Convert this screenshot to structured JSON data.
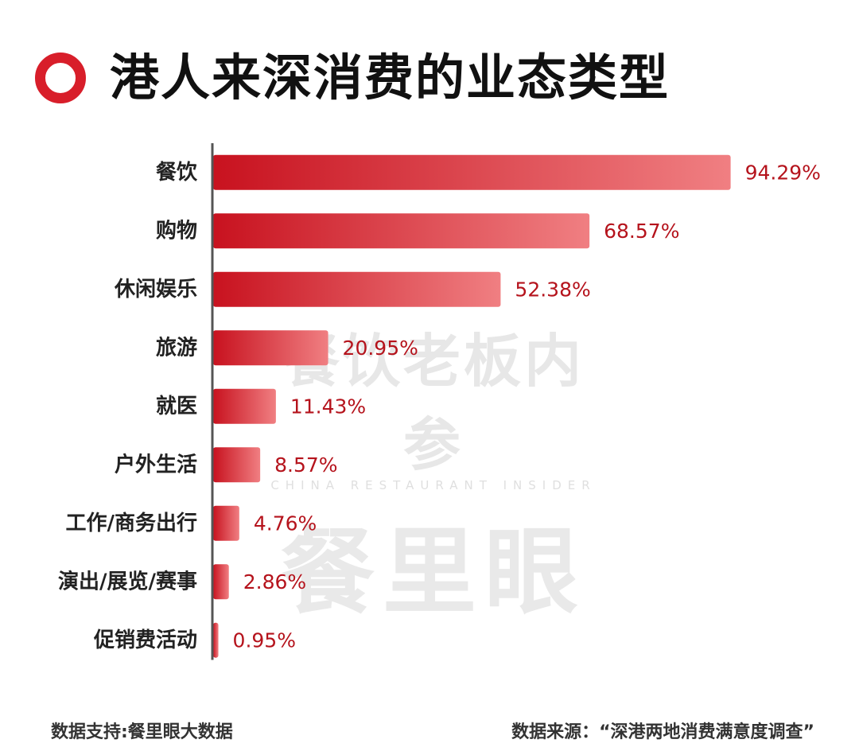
{
  "title": "港人来深消费的业态类型",
  "watermark": {
    "line1": "餐饮老板内参",
    "line2": "CHINA RESTAURANT INSIDER",
    "line3": "餐里眼"
  },
  "footer": {
    "left": "数据支持:餐里眼大数据",
    "right": "数据来源：“深港两地消费满意度调查”"
  },
  "colors": {
    "accent": "#d81e2a",
    "bar_start": "#c8121f",
    "bar_end": "#f07f82",
    "value_label": "#b5131c"
  },
  "chart_data": {
    "type": "bar",
    "orientation": "horizontal",
    "categories": [
      "餐饮",
      "购物",
      "休闲娱乐",
      "旅游",
      "就医",
      "户外生活",
      "工作/商务出行",
      "演出/展览/赛事",
      "促销费活动"
    ],
    "values": [
      94.29,
      68.57,
      52.38,
      20.95,
      11.43,
      8.57,
      4.76,
      2.86,
      0.95
    ],
    "value_labels": [
      "94.29%",
      "68.57%",
      "52.38%",
      "20.95%",
      "11.43%",
      "8.57%",
      "4.76%",
      "2.86%",
      "0.95%"
    ],
    "unit": "%",
    "xlim": [
      0,
      100
    ],
    "grid": false,
    "legend": "none"
  }
}
